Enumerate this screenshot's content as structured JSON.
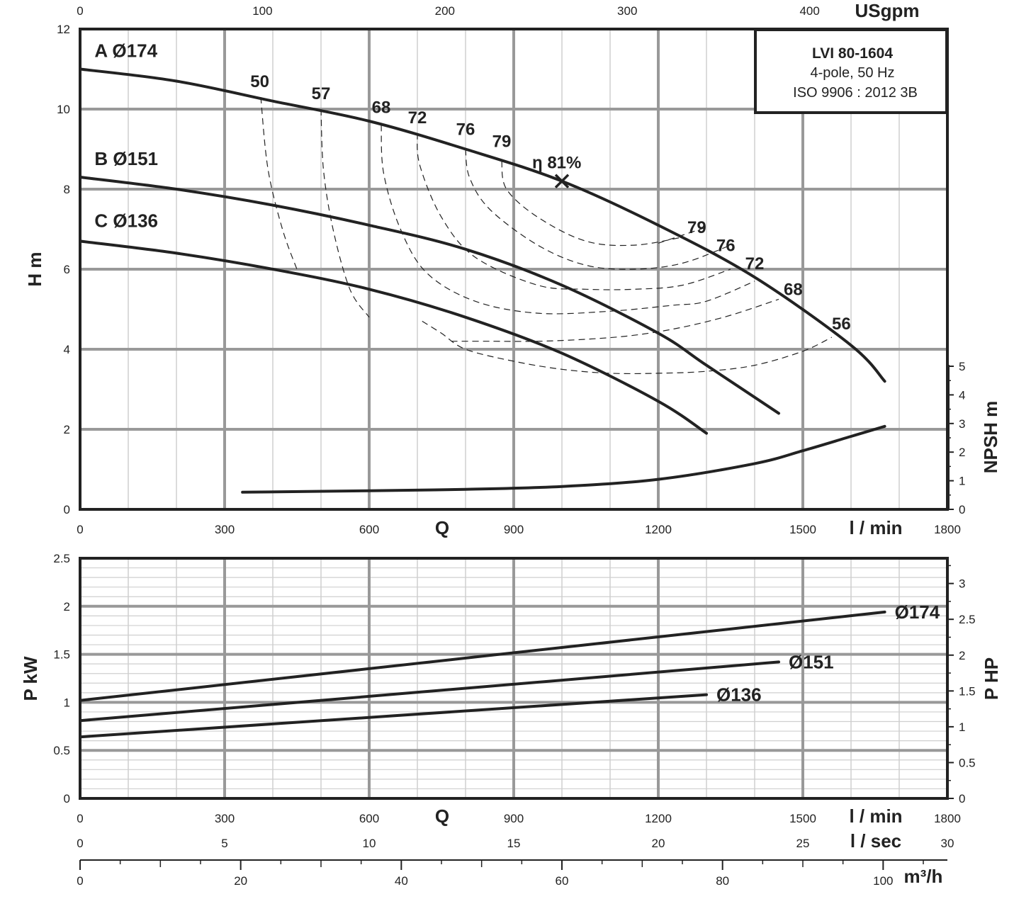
{
  "colors": {
    "ink": "#222222",
    "major_grid": "#999999",
    "minor_grid": "#cfcfcf"
  },
  "chart_data": [
    {
      "type": "line",
      "title_box": {
        "line1": "LVI 80-1604",
        "line2": "4-pole, 50 Hz",
        "line3": "ISO 9906 : 2012 3B"
      },
      "xlabel": "Q",
      "xunit": "l / min",
      "x2unit": "USgpm",
      "ylabel": "H m",
      "y2label": "NPSH m",
      "xlim": [
        0,
        1800
      ],
      "ylim": [
        0,
        12
      ],
      "y2lim": [
        0,
        6
      ],
      "xticks": [
        "0",
        "300",
        "600",
        "900",
        "1200",
        "1500",
        "1800"
      ],
      "x2ticks": [
        "0",
        "100",
        "200",
        "300",
        "400"
      ],
      "yticks": [
        "0",
        "2",
        "4",
        "6",
        "8",
        "10",
        "12"
      ],
      "y2ticks": [
        "0",
        "1",
        "2",
        "3",
        "4",
        "5"
      ],
      "series": [
        {
          "name": "A Ø174",
          "x": [
            0,
            200,
            400,
            600,
            800,
            1000,
            1200,
            1400,
            1600,
            1670
          ],
          "y": [
            11.0,
            10.7,
            10.2,
            9.7,
            9.0,
            8.2,
            7.1,
            5.8,
            4.1,
            3.2
          ]
        },
        {
          "name": "B Ø151",
          "x": [
            0,
            200,
            400,
            600,
            800,
            1000,
            1200,
            1300,
            1450
          ],
          "y": [
            8.3,
            8.0,
            7.6,
            7.1,
            6.5,
            5.6,
            4.4,
            3.6,
            2.4
          ]
        },
        {
          "name": "C Ø136",
          "x": [
            0,
            200,
            400,
            600,
            800,
            1000,
            1200,
            1300
          ],
          "y": [
            6.7,
            6.4,
            6.0,
            5.5,
            4.8,
            3.9,
            2.7,
            1.9
          ]
        },
        {
          "name": "NPSH",
          "axis": "y2",
          "x": [
            337,
            600,
            800,
            1000,
            1200,
            1400,
            1500,
            1600,
            1670
          ],
          "y": [
            0.6,
            0.65,
            0.7,
            0.8,
            1.05,
            1.6,
            2.05,
            2.55,
            2.9
          ]
        }
      ],
      "efficiency_curves": [
        {
          "label": "50",
          "x": [
            375,
            390,
            420,
            450
          ],
          "y": [
            10.3,
            8.5,
            7.0,
            6.0
          ]
        },
        {
          "label": "57",
          "x": [
            500,
            505,
            525,
            560,
            600
          ],
          "y": [
            10.0,
            8.5,
            7.0,
            5.5,
            4.8
          ]
        },
        {
          "label": "68",
          "x": [
            625,
            630,
            665,
            720,
            820,
            950,
            1100,
            1230,
            1300,
            1400
          ],
          "y": [
            9.6,
            8.4,
            7.0,
            5.9,
            5.2,
            4.9,
            4.95,
            5.1,
            5.2,
            5.7
          ]
        },
        {
          "label": "72",
          "x": [
            700,
            705,
            750,
            820,
            950,
            1050,
            1150,
            1250,
            1350
          ],
          "y": [
            9.4,
            8.6,
            7.3,
            6.3,
            5.6,
            5.5,
            5.5,
            5.6,
            6.0
          ]
        },
        {
          "label": "76",
          "x": [
            800,
            808,
            850,
            950,
            1050,
            1150,
            1250,
            1350
          ],
          "y": [
            9.0,
            8.3,
            7.5,
            6.6,
            6.1,
            6.0,
            6.15,
            6.6
          ]
        },
        {
          "label": "79",
          "x": [
            875,
            885,
            950,
            1050,
            1150,
            1250
          ],
          "y": [
            8.7,
            8.0,
            7.3,
            6.7,
            6.6,
            6.8
          ]
        },
        {
          "label": "79",
          "x": [
            1200,
            1250,
            1300
          ],
          "y": [
            6.65,
            6.85,
            7.05
          ]
        },
        {
          "label": "56",
          "x": [
            710,
            750,
            800,
            900,
            1000,
            1100,
            1200,
            1300,
            1400,
            1500,
            1560
          ],
          "y": [
            4.7,
            4.4,
            4.0,
            3.7,
            3.5,
            3.4,
            3.4,
            3.45,
            3.6,
            3.95,
            4.3
          ]
        },
        {
          "label": "",
          "x": [
            770,
            850,
            950,
            1050,
            1150,
            1250,
            1350,
            1450
          ],
          "y": [
            4.2,
            4.2,
            4.2,
            4.25,
            4.35,
            4.55,
            4.85,
            5.25
          ]
        }
      ],
      "efficiency_labels": [
        {
          "text": "50",
          "x": 373,
          "y": 10.55
        },
        {
          "text": "57",
          "x": 500,
          "y": 10.25
        },
        {
          "text": "68",
          "x": 625,
          "y": 9.9
        },
        {
          "text": "72",
          "x": 700,
          "y": 9.65
        },
        {
          "text": "76",
          "x": 800,
          "y": 9.35
        },
        {
          "text": "79",
          "x": 875,
          "y": 9.05
        },
        {
          "text": "79",
          "x": 1280,
          "y": 6.9
        },
        {
          "text": "76",
          "x": 1340,
          "y": 6.45
        },
        {
          "text": "72",
          "x": 1400,
          "y": 6.0
        },
        {
          "text": "68",
          "x": 1480,
          "y": 5.35
        },
        {
          "text": "56",
          "x": 1580,
          "y": 4.5
        }
      ],
      "bep": {
        "label": "η 81%",
        "x": 1000,
        "y": 8.2
      },
      "curve_labels": [
        {
          "text": "A Ø174",
          "x": 30,
          "y": 11.3
        },
        {
          "text": "B Ø151",
          "x": 30,
          "y": 8.6
        },
        {
          "text": "C Ø136",
          "x": 30,
          "y": 7.05
        }
      ]
    },
    {
      "type": "line",
      "xlabel": "Q",
      "xunit": "l / min",
      "xunit2": "l / sec",
      "xunit3": "m³/h",
      "ylabel": "P kW",
      "y2label": "P HP",
      "xlim": [
        0,
        1800
      ],
      "ylim": [
        0,
        2.5
      ],
      "y2lim": [
        0,
        3.35
      ],
      "xticks": [
        "0",
        "300",
        "600",
        "900",
        "1200",
        "1500",
        "1800"
      ],
      "x_sec_ticks": [
        "0",
        "5",
        "10",
        "15",
        "20",
        "25",
        "30"
      ],
      "x_m3h_ticks": [
        "0",
        "20",
        "40",
        "60",
        "80",
        "100"
      ],
      "yticks": [
        "0",
        "0.5",
        "1",
        "1.5",
        "2",
        "2.5"
      ],
      "y2ticks": [
        "0",
        "0.5",
        "1",
        "1.5",
        "2",
        "2.5",
        "3"
      ],
      "series": [
        {
          "name": "Ø174",
          "x": [
            0,
            1670
          ],
          "y": [
            1.02,
            1.94
          ]
        },
        {
          "name": "Ø151",
          "x": [
            0,
            1450
          ],
          "y": [
            0.81,
            1.42
          ]
        },
        {
          "name": "Ø136",
          "x": [
            0,
            1300
          ],
          "y": [
            0.64,
            1.08
          ]
        }
      ]
    }
  ]
}
